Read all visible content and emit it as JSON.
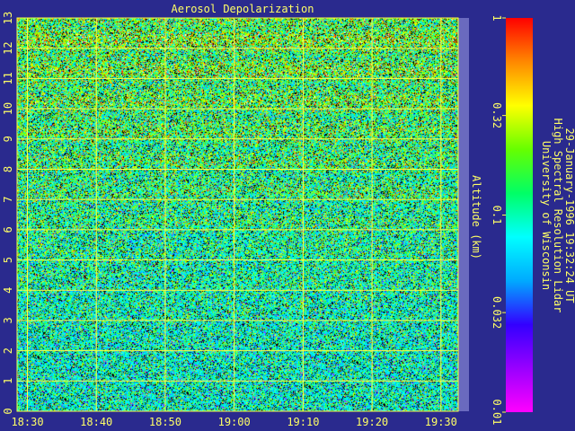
{
  "chart_data": {
    "type": "heatmap",
    "title": "Aerosol Depolarization",
    "xlabel": "",
    "ylabel": "Altitude (km)",
    "x_ticks": [
      "18:30",
      "18:40",
      "18:50",
      "19:00",
      "19:10",
      "19:20",
      "19:30"
    ],
    "x_tick_minutes": [
      0,
      10,
      20,
      30,
      40,
      50,
      60
    ],
    "x_range_minutes": [
      -1.5,
      62.5
    ],
    "y_ticks": [
      "0",
      "1",
      "2",
      "3",
      "4",
      "5",
      "6",
      "7",
      "8",
      "9",
      "10",
      "11",
      "12",
      "13"
    ],
    "ylim": [
      0,
      13
    ],
    "grid": true,
    "colorbar": {
      "scale": "log",
      "range": [
        0.01,
        1
      ],
      "tick_values": [
        1,
        0.32,
        0.1,
        0.032,
        0.01
      ],
      "tick_labels": [
        "1",
        "0.32",
        "0.1",
        "0.032",
        "0.01"
      ],
      "colors": [
        "#ff00ff",
        "#9900ff",
        "#3300ff",
        "#00aaff",
        "#00ffff",
        "#00ff66",
        "#66ff00",
        "#ffff00",
        "#ff8800",
        "#ff0000"
      ]
    },
    "annotation_lines": [
      "University of Wisconsin",
      "High Spectral Resolution Lidar",
      "29-January-1996 19:32:24 UT"
    ]
  }
}
